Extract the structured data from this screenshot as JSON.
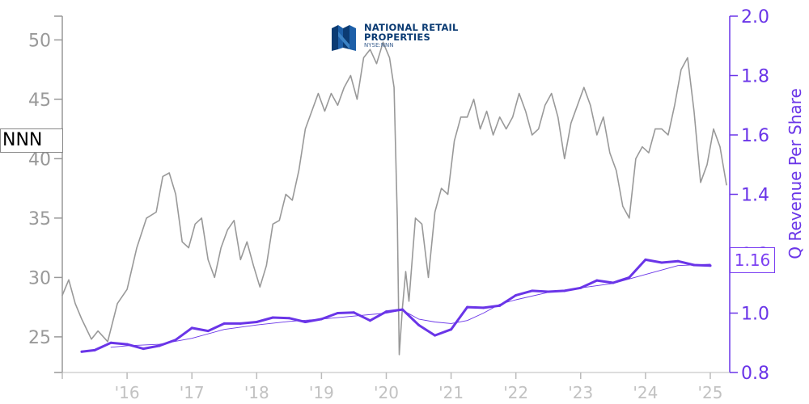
{
  "chart_data": {
    "type": "line",
    "title": "",
    "ticker": "NNN",
    "last_value_label": "1.16",
    "logo": {
      "line1": "NATIONAL RETAIL",
      "line2": "PROPERTIES",
      "line3": "NYSE:NNN"
    },
    "x_tick_labels": [
      "'16",
      "'17",
      "'18",
      "'19",
      "'20",
      "'21",
      "'22",
      "'23",
      "'24",
      "'25"
    ],
    "x_tick_years": [
      2016,
      2017,
      2018,
      2019,
      2020,
      2021,
      2022,
      2023,
      2024,
      2025
    ],
    "xlim": [
      2015.0,
      2025.3
    ],
    "left_axis": {
      "label": "",
      "ylim": [
        22,
        52
      ],
      "ticks": [
        25,
        30,
        35,
        40,
        45,
        50
      ],
      "color": "#999999"
    },
    "right_axis": {
      "label": "Q Revenue Per Share",
      "ylim": [
        0.8,
        2.0
      ],
      "ticks": [
        "0.8",
        "1.0",
        "1.2",
        "1.4",
        "1.6",
        "1.8",
        "2.0"
      ],
      "color": "#6a35e8"
    },
    "series": [
      {
        "name": "NNN",
        "axis": "left",
        "color": "#999999",
        "x": [
          2015.0,
          2015.1,
          2015.2,
          2015.3,
          2015.45,
          2015.55,
          2015.7,
          2015.85,
          2016.0,
          2016.15,
          2016.3,
          2016.45,
          2016.55,
          2016.65,
          2016.75,
          2016.85,
          2016.95,
          2017.05,
          2017.15,
          2017.25,
          2017.35,
          2017.45,
          2017.55,
          2017.65,
          2017.75,
          2017.85,
          2017.95,
          2018.05,
          2018.15,
          2018.25,
          2018.35,
          2018.45,
          2018.55,
          2018.65,
          2018.75,
          2018.85,
          2018.95,
          2019.05,
          2019.15,
          2019.25,
          2019.35,
          2019.45,
          2019.55,
          2019.65,
          2019.75,
          2019.85,
          2019.95,
          2020.05,
          2020.12,
          2020.17,
          2020.2,
          2020.25,
          2020.3,
          2020.35,
          2020.45,
          2020.55,
          2020.65,
          2020.75,
          2020.85,
          2020.95,
          2021.05,
          2021.15,
          2021.25,
          2021.35,
          2021.45,
          2021.55,
          2021.65,
          2021.75,
          2021.85,
          2021.95,
          2022.05,
          2022.15,
          2022.25,
          2022.35,
          2022.45,
          2022.55,
          2022.65,
          2022.75,
          2022.85,
          2022.95,
          2023.05,
          2023.15,
          2023.25,
          2023.35,
          2023.45,
          2023.55,
          2023.65,
          2023.75,
          2023.85,
          2023.95,
          2024.05,
          2024.15,
          2024.25,
          2024.35,
          2024.45,
          2024.55,
          2024.65,
          2024.75,
          2024.85,
          2024.95,
          2025.05,
          2025.15,
          2025.25
        ],
        "values": [
          28.5,
          29.8,
          27.8,
          26.5,
          24.8,
          25.5,
          24.6,
          27.8,
          29.0,
          32.5,
          35.0,
          35.5,
          38.5,
          38.8,
          37.0,
          33.0,
          32.5,
          34.5,
          35.0,
          31.5,
          30.0,
          32.5,
          34.0,
          34.8,
          31.5,
          33.0,
          31.0,
          29.2,
          31.0,
          34.5,
          34.8,
          37.0,
          36.5,
          39.0,
          42.5,
          44.0,
          45.5,
          44.0,
          45.5,
          44.5,
          46.0,
          47.0,
          45.0,
          48.5,
          49.2,
          48.0,
          49.8,
          48.5,
          46.0,
          35.0,
          23.5,
          27.5,
          30.5,
          28.0,
          35.0,
          34.5,
          30.0,
          35.5,
          37.5,
          37.0,
          41.5,
          43.5,
          43.5,
          45.0,
          42.5,
          44.0,
          42.0,
          43.5,
          42.5,
          43.5,
          45.5,
          44.0,
          42.0,
          42.5,
          44.5,
          45.5,
          43.5,
          40.0,
          43.0,
          44.5,
          46.0,
          44.5,
          42.0,
          43.5,
          40.5,
          39.0,
          36.0,
          35.0,
          40.0,
          41.0,
          40.5,
          42.5,
          42.5,
          42.0,
          44.5,
          47.5,
          48.5,
          44.0,
          38.0,
          39.5,
          42.5,
          41.0,
          37.8
        ]
      },
      {
        "name": "Q Revenue Per Share",
        "axis": "right",
        "color": "#6a35e8",
        "x": [
          2015.3,
          2015.5,
          2015.75,
          2016.0,
          2016.25,
          2016.5,
          2016.75,
          2017.0,
          2017.25,
          2017.5,
          2017.75,
          2018.0,
          2018.25,
          2018.5,
          2018.75,
          2019.0,
          2019.25,
          2019.5,
          2019.75,
          2020.0,
          2020.25,
          2020.5,
          2020.75,
          2021.0,
          2021.25,
          2021.5,
          2021.75,
          2022.0,
          2022.25,
          2022.5,
          2022.75,
          2023.0,
          2023.25,
          2023.5,
          2023.75,
          2024.0,
          2024.25,
          2024.5,
          2024.75,
          2025.0
        ],
        "values": [
          0.87,
          0.875,
          0.9,
          0.895,
          0.88,
          0.89,
          0.91,
          0.95,
          0.94,
          0.965,
          0.965,
          0.97,
          0.985,
          0.983,
          0.97,
          0.98,
          1.0,
          1.002,
          0.975,
          1.005,
          1.012,
          0.96,
          0.925,
          0.945,
          1.02,
          1.018,
          1.025,
          1.06,
          1.075,
          1.072,
          1.075,
          1.085,
          1.11,
          1.102,
          1.12,
          1.18,
          1.17,
          1.175,
          1.162,
          1.16
        ]
      },
      {
        "name": "",
        "axis": "right",
        "color": "#6a35e8",
        "thin": true,
        "x": [
          2015.75,
          2016.0,
          2016.5,
          2017.0,
          2017.5,
          2018.0,
          2018.5,
          2019.0,
          2019.5,
          2020.0,
          2020.25,
          2020.5,
          2020.75,
          2021.0,
          2021.25,
          2021.5,
          2021.75,
          2022.0,
          2022.5,
          2023.0,
          2023.5,
          2024.0,
          2024.5,
          2025.0
        ],
        "values": [
          0.885,
          0.89,
          0.895,
          0.915,
          0.945,
          0.96,
          0.972,
          0.98,
          0.99,
          1.0,
          1.01,
          0.98,
          0.97,
          0.965,
          0.975,
          1.0,
          1.03,
          1.045,
          1.07,
          1.085,
          1.1,
          1.13,
          1.16,
          1.165
        ]
      }
    ]
  }
}
